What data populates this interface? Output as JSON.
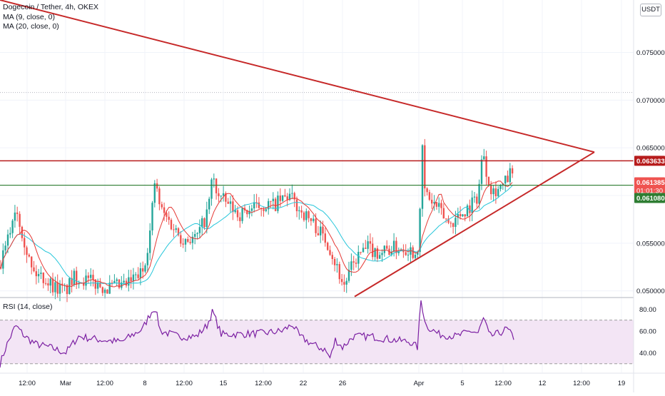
{
  "header": {
    "title": "Dogecoin / Tether, 4h, OKEX",
    "indicators": [
      "MA (9, close, 0)",
      "MA (20, close, 0)"
    ],
    "currency": "USDT"
  },
  "rsi": {
    "label": "RSI (14, close)",
    "upper": 70,
    "lower": 30
  },
  "colors": {
    "up": "#26a69a",
    "down": "#ef5350",
    "ma9": "#e53935",
    "ma20": "#26c6da",
    "trend": "#c62828",
    "resistance": "#b71c1c",
    "support": "#2e7d32",
    "rsi_line": "#7b1fa2",
    "rsi_band": "#f3e5f5"
  },
  "chart_data": [
    {
      "type": "candlestick",
      "title": "Dogecoin / Tether, 4h, OKEX",
      "ylim": [
        0.0493,
        0.0805
      ],
      "yticks": [
        "0.050000",
        "0.055000",
        "0.060000",
        "0.065000",
        "0.070000",
        "0.075000"
      ],
      "xticks": [
        "12:00",
        "Mar",
        "12:00",
        "8",
        "12:00",
        "15",
        "12:00",
        "22",
        "26",
        "Apr",
        "5",
        "12:00",
        "12",
        "12:00",
        "19"
      ],
      "price_labels": [
        {
          "value": 0.063633,
          "text": "0.063633"
        },
        {
          "value": 0.061385,
          "text": "0.061385",
          "countdown": "01:01:30"
        },
        {
          "value": 0.06108,
          "text": "0.061080"
        }
      ],
      "horizontal_lines": [
        0.063633,
        0.06108
      ],
      "trendlines": [
        {
          "from": [
            0,
            0.0805
          ],
          "to": [
            833,
            0.06455
          ]
        },
        {
          "from": [
            497,
            0.0494
          ],
          "to": [
            833,
            0.06455
          ]
        }
      ],
      "series": [
        {
          "name": "Price",
          "anchors": [
            [
              0,
              0.0525
            ],
            [
              10,
              0.055
            ],
            [
              22,
              0.059
            ],
            [
              32,
              0.056
            ],
            [
              45,
              0.052
            ],
            [
              60,
              0.0515
            ],
            [
              75,
              0.0505
            ],
            [
              92,
              0.05
            ],
            [
              105,
              0.0515
            ],
            [
              125,
              0.051
            ],
            [
              150,
              0.0503
            ],
            [
              175,
              0.0505
            ],
            [
              200,
              0.052
            ],
            [
              210,
              0.056
            ],
            [
              217,
              0.0615
            ],
            [
              225,
              0.0585
            ],
            [
              240,
              0.057
            ],
            [
              255,
              0.0555
            ],
            [
              275,
              0.0555
            ],
            [
              290,
              0.058
            ],
            [
              298,
              0.062
            ],
            [
              305,
              0.06
            ],
            [
              320,
              0.059
            ],
            [
              335,
              0.058
            ],
            [
              350,
              0.0585
            ],
            [
              370,
              0.059
            ],
            [
              385,
              0.059
            ],
            [
              395,
              0.0595
            ],
            [
              405,
              0.06
            ],
            [
              420,
              0.0585
            ],
            [
              440,
              0.057
            ],
            [
              460,
              0.055
            ],
            [
              472,
              0.0525
            ],
            [
              482,
              0.0505
            ],
            [
              490,
              0.052
            ],
            [
              500,
              0.0535
            ],
            [
              515,
              0.0545
            ],
            [
              530,
              0.054
            ],
            [
              550,
              0.0545
            ],
            [
              570,
              0.0545
            ],
            [
              582,
              0.054
            ],
            [
              588,
              0.0555
            ],
            [
              591,
              0.0665
            ],
            [
              595,
              0.0605
            ],
            [
              603,
              0.0595
            ],
            [
              615,
              0.0585
            ],
            [
              630,
              0.057
            ],
            [
              645,
              0.058
            ],
            [
              660,
              0.059
            ],
            [
              670,
              0.06
            ],
            [
              677,
              0.065
            ],
            [
              683,
              0.062
            ],
            [
              690,
              0.0605
            ],
            [
              705,
              0.061
            ],
            [
              717,
              0.0625
            ],
            [
              720,
              0.0615
            ]
          ]
        },
        {
          "name": "MA (9, close, 0)"
        },
        {
          "name": "MA (20, close, 0)"
        }
      ]
    },
    {
      "type": "line",
      "title": "RSI (14, close)",
      "ylim": [
        22,
        90
      ],
      "yticks": [
        "40.00",
        "60.00",
        "80.00"
      ],
      "series": [
        {
          "name": "RSI (14, close)",
          "anchors": [
            [
              0,
              30
            ],
            [
              10,
              48
            ],
            [
              22,
              65
            ],
            [
              35,
              55
            ],
            [
              50,
              48
            ],
            [
              70,
              45
            ],
            [
              92,
              40
            ],
            [
              110,
              55
            ],
            [
              140,
              52
            ],
            [
              170,
              50
            ],
            [
              200,
              62
            ],
            [
              210,
              75
            ],
            [
              217,
              82
            ],
            [
              225,
              60
            ],
            [
              250,
              55
            ],
            [
              275,
              55
            ],
            [
              290,
              65
            ],
            [
              298,
              78
            ],
            [
              310,
              57
            ],
            [
              335,
              57
            ],
            [
              370,
              58
            ],
            [
              395,
              60
            ],
            [
              410,
              66
            ],
            [
              420,
              55
            ],
            [
              440,
              47
            ],
            [
              455,
              43
            ],
            [
              463,
              35
            ],
            [
              470,
              52
            ],
            [
              480,
              45
            ],
            [
              495,
              55
            ],
            [
              520,
              55
            ],
            [
              550,
              52
            ],
            [
              575,
              50
            ],
            [
              585,
              45
            ],
            [
              590,
              88
            ],
            [
              597,
              65
            ],
            [
              615,
              57
            ],
            [
              640,
              55
            ],
            [
              660,
              60
            ],
            [
              670,
              58
            ],
            [
              678,
              72
            ],
            [
              686,
              55
            ],
            [
              700,
              58
            ],
            [
              710,
              62
            ],
            [
              720,
              54
            ]
          ]
        }
      ]
    }
  ]
}
